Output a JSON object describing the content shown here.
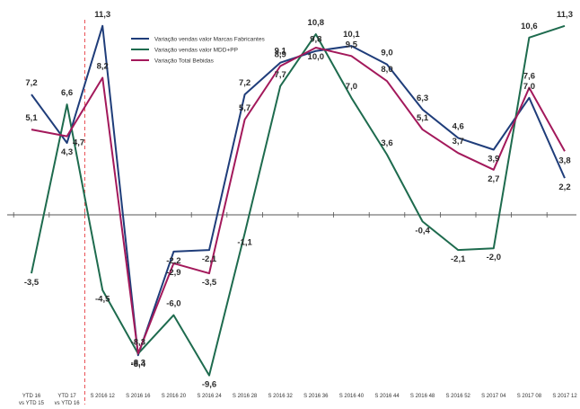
{
  "chart_data": {
    "type": "line",
    "categories": [
      [
        "YTD 16",
        "vs YTD 15"
      ],
      [
        "YTD 17",
        "vs YTD 16"
      ],
      [
        "S 2016 12"
      ],
      [
        "S 2016 16"
      ],
      [
        "S 2016 20"
      ],
      [
        "S 2016 24"
      ],
      [
        "S 2016 28"
      ],
      [
        "S 2016 32"
      ],
      [
        "S 2016 36"
      ],
      [
        "S 2016 40"
      ],
      [
        "S 2016 44"
      ],
      [
        "S 2016 48"
      ],
      [
        "S 2016 52"
      ],
      [
        "S 2017 04"
      ],
      [
        "S 2017 08"
      ],
      [
        "S 2017 12"
      ]
    ],
    "series": [
      {
        "name": "Variação vendas valor Marcas Fabricantes",
        "color": "#1f3d7a",
        "values": [
          7.2,
          4.3,
          11.3,
          -8.4,
          -2.2,
          -2.1,
          7.2,
          9.1,
          9.8,
          10.1,
          9.0,
          6.3,
          4.6,
          3.9,
          7.0,
          2.2
        ]
      },
      {
        "name": "Variação vendas valor MDD+PP",
        "color": "#1e6b4e",
        "values": [
          -3.5,
          6.6,
          -4.5,
          -8.3,
          -6.0,
          -9.6,
          -1.1,
          7.7,
          10.8,
          7.0,
          3.6,
          -0.4,
          -2.1,
          -2.0,
          10.6,
          11.3
        ]
      },
      {
        "name": "Variação Total Bebidas",
        "color": "#a3195b",
        "values": [
          5.1,
          4.7,
          8.2,
          -8.3,
          -2.9,
          -3.5,
          5.7,
          8.9,
          10.0,
          9.5,
          8.0,
          5.1,
          3.7,
          2.7,
          7.6,
          3.8
        ]
      }
    ],
    "labels": [
      [
        "7,2",
        "4,3",
        "11,3",
        "-8,4",
        "-2,2",
        "-2,1",
        "7,2",
        "9,1",
        "9,8",
        "10,1",
        "9,0",
        "6,3",
        "4,6",
        "3,9",
        "7,0",
        "2,2"
      ],
      [
        "-3,5",
        "6,6",
        "-4,5",
        "-8,3",
        "-6,0",
        "-9,6",
        "-1,1",
        "7,7",
        "10,8",
        "7,0",
        "3,6",
        "-0,4",
        "-2,1",
        "-2,0",
        "10,6",
        "11,3"
      ],
      [
        "5,1",
        "4,7",
        "8,2",
        "-8,3",
        "-2,9",
        "-3,5",
        "5,7",
        "8,9",
        "10,0",
        "9,5",
        "8,0",
        "5,1",
        "3,7",
        "2,7",
        "7,6",
        "3,8"
      ]
    ],
    "ylim": [
      -11.3,
      12.5
    ],
    "legend_position": "top-center",
    "grid": false,
    "reference_line": {
      "between_categories": [
        1,
        2
      ],
      "color": "#e8474c",
      "style": "dashed"
    }
  }
}
